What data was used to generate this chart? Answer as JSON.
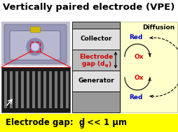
{
  "title": "Vertically paired electrode (VPE)",
  "bg_color": "#ffffff",
  "yellow_bg": "#ffffcc",
  "footer_yellow": "#ffff00",
  "collector_label": "Collector",
  "generator_label": "Generator",
  "diffusion_label": "Diffusion",
  "red_color": "#0000bb",
  "ox_color": "#cc0000",
  "gap_text_color": "#cc0000",
  "electrode_dark_gray": "#999999",
  "electrode_light_gray": "#e0e0e0",
  "electrode_mid_gray": "#bbbbbb",
  "title_fontsize": 9.5,
  "body_fontsize": 6.5,
  "footer_fontsize": 8.5,
  "chip_bg": "#c0c0cc",
  "chip_body": "#aaaacc",
  "sem_bg": "#1a1a1a"
}
